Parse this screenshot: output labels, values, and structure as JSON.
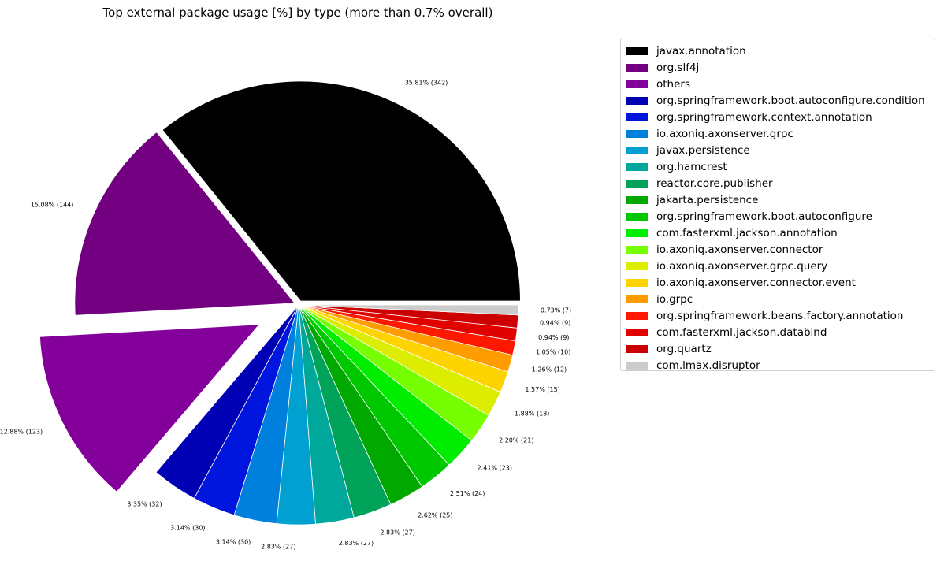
{
  "chart_data": {
    "type": "pie",
    "title": "Top external package usage [%] by type (more than 0.7% overall)",
    "slices": [
      {
        "name": "javax.annotation",
        "label": "35.81% (342)",
        "value": 342,
        "color": "#000000"
      },
      {
        "name": "org.slf4j",
        "label": "15.08% (144)",
        "value": 144,
        "color": "#720080"
      },
      {
        "name": "others",
        "label": "12.88% (123)",
        "value": 123,
        "color": "#83009a"
      },
      {
        "name": "org.springframework.boot.autoconfigure.condition",
        "label": "3.35% (32)",
        "value": 32,
        "color": "#0000b4"
      },
      {
        "name": "org.springframework.context.annotation",
        "label": "3.14% (30)",
        "value": 30,
        "color": "#0015dd"
      },
      {
        "name": "io.axoniq.axonserver.grpc",
        "label": "3.14% (30)",
        "value": 30,
        "color": "#0080dd"
      },
      {
        "name": "javax.persistence",
        "label": "2.83% (27)",
        "value": 27,
        "color": "#00a0d0"
      },
      {
        "name": "org.hamcrest",
        "label": "2.83% (27)",
        "value": 27,
        "color": "#00a89c"
      },
      {
        "name": "reactor.core.publisher",
        "label": "2.83% (27)",
        "value": 27,
        "color": "#00a359"
      },
      {
        "name": "jakarta.persistence",
        "label": "2.62% (25)",
        "value": 25,
        "color": "#00a800"
      },
      {
        "name": "org.springframework.boot.autoconfigure",
        "label": "2.51% (24)",
        "value": 24,
        "color": "#00c800"
      },
      {
        "name": "com.fasterxml.jackson.annotation",
        "label": "2.41% (23)",
        "value": 23,
        "color": "#00ed00"
      },
      {
        "name": "io.axoniq.axonserver.connector",
        "label": "2.20% (21)",
        "value": 21,
        "color": "#76ff00"
      },
      {
        "name": "io.axoniq.axonserver.grpc.query",
        "label": "1.88% (18)",
        "value": 18,
        "color": "#dded00"
      },
      {
        "name": "io.axoniq.axonserver.connector.event",
        "label": "1.57% (15)",
        "value": 15,
        "color": "#fdd400"
      },
      {
        "name": "io.grpc",
        "label": "1.26% (12)",
        "value": 12,
        "color": "#ff9c00"
      },
      {
        "name": "org.springframework.beans.factory.annotation",
        "label": "1.05% (10)",
        "value": 10,
        "color": "#ff1800"
      },
      {
        "name": "com.fasterxml.jackson.databind",
        "label": "0.94% (9)",
        "value": 9,
        "color": "#e00000"
      },
      {
        "name": "org.quartz",
        "label": "0.94% (9)",
        "value": 9,
        "color": "#cc0000"
      },
      {
        "name": "com.lmax.disruptor",
        "label": "0.73% (7)",
        "value": 7,
        "color": "#cccccc"
      }
    ],
    "start_angle_deg": 0,
    "direction": "counterclockwise",
    "exploded": [
      "javax.annotation",
      "org.slf4j",
      "others"
    ],
    "legend_placement": "right"
  }
}
